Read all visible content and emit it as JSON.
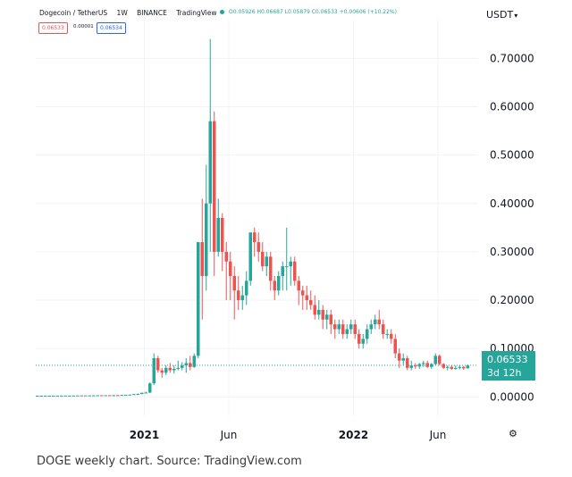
{
  "header": {
    "symbol": "Dogecoin / TetherUS",
    "interval": "1W",
    "exchange": "BINANCE",
    "source": "TradingView",
    "ohlc": "O0.05926 H0.06687 L0.05879 C0.06533 +0.00606 (+10.22%)"
  },
  "controls": {
    "sell": "0.06533",
    "spread": "0.00001",
    "buy": "0.06534"
  },
  "currency": "USDT",
  "price_badge": {
    "price": "0.06533",
    "countdown": "3d 12h"
  },
  "caption": "DOGE weekly chart. Source: TradingView.com",
  "colors": {
    "up": "#26a69a",
    "down": "#ef5350",
    "grid": "#f0f3fa",
    "badge": "#26a69a"
  },
  "icons": {
    "settings": "gear-icon",
    "currency_menu": "caret-down-icon"
  },
  "chart_data": {
    "type": "candlestick",
    "ylim": [
      -0.04,
      0.78
    ],
    "y_ticks": [
      "0.70000",
      "0.60000",
      "0.50000",
      "0.40000",
      "0.30000",
      "0.20000",
      "0.10000",
      "0.00000"
    ],
    "x_ticks": [
      {
        "label": "2021",
        "bold": true,
        "week": 27
      },
      {
        "label": "Jun",
        "bold": false,
        "week": 48
      },
      {
        "label": "2022",
        "bold": true,
        "week": 79
      },
      {
        "label": "Jun",
        "bold": false,
        "week": 100
      }
    ],
    "current_price": 0.06533,
    "candles_ohlc": [
      [
        0.0025,
        0.0026,
        0.0024,
        0.0025
      ],
      [
        0.0025,
        0.0026,
        0.0024,
        0.0025
      ],
      [
        0.0025,
        0.0026,
        0.0024,
        0.0026
      ],
      [
        0.0026,
        0.0027,
        0.0025,
        0.0026
      ],
      [
        0.0026,
        0.0027,
        0.0025,
        0.0026
      ],
      [
        0.0026,
        0.0027,
        0.0025,
        0.0027
      ],
      [
        0.0027,
        0.0028,
        0.0026,
        0.0027
      ],
      [
        0.0027,
        0.0029,
        0.0026,
        0.0028
      ],
      [
        0.0028,
        0.003,
        0.0027,
        0.0028
      ],
      [
        0.0028,
        0.003,
        0.0027,
        0.0029
      ],
      [
        0.0029,
        0.0031,
        0.0028,
        0.003
      ],
      [
        0.003,
        0.0032,
        0.0029,
        0.0031
      ],
      [
        0.0031,
        0.0033,
        0.0029,
        0.003
      ],
      [
        0.003,
        0.0032,
        0.0029,
        0.0031
      ],
      [
        0.0031,
        0.0034,
        0.003,
        0.0033
      ],
      [
        0.0033,
        0.0035,
        0.0031,
        0.0034
      ],
      [
        0.0034,
        0.0036,
        0.0032,
        0.0033
      ],
      [
        0.0033,
        0.0036,
        0.0032,
        0.0035
      ],
      [
        0.0035,
        0.0037,
        0.0033,
        0.0034
      ],
      [
        0.0034,
        0.0038,
        0.0033,
        0.0036
      ],
      [
        0.0036,
        0.004,
        0.0034,
        0.0035
      ],
      [
        0.0035,
        0.0041,
        0.0034,
        0.004
      ],
      [
        0.004,
        0.0045,
        0.0036,
        0.0042
      ],
      [
        0.0042,
        0.005,
        0.0039,
        0.0047
      ],
      [
        0.0047,
        0.006,
        0.0045,
        0.0058
      ],
      [
        0.0058,
        0.007,
        0.005,
        0.006
      ],
      [
        0.006,
        0.009,
        0.0055,
        0.0085
      ],
      [
        0.0085,
        0.011,
        0.0075,
        0.009
      ],
      [
        0.009,
        0.03,
        0.008,
        0.028
      ],
      [
        0.028,
        0.09,
        0.025,
        0.08
      ],
      [
        0.08,
        0.085,
        0.05,
        0.055
      ],
      [
        0.055,
        0.06,
        0.04,
        0.05
      ],
      [
        0.05,
        0.065,
        0.045,
        0.06
      ],
      [
        0.06,
        0.07,
        0.05,
        0.055
      ],
      [
        0.055,
        0.065,
        0.048,
        0.058
      ],
      [
        0.058,
        0.075,
        0.055,
        0.06
      ],
      [
        0.06,
        0.072,
        0.055,
        0.065
      ],
      [
        0.065,
        0.08,
        0.05,
        0.07
      ],
      [
        0.07,
        0.085,
        0.055,
        0.062
      ],
      [
        0.062,
        0.09,
        0.06,
        0.085
      ],
      [
        0.085,
        0.32,
        0.08,
        0.32
      ],
      [
        0.32,
        0.41,
        0.16,
        0.25
      ],
      [
        0.25,
        0.48,
        0.22,
        0.4
      ],
      [
        0.4,
        0.74,
        0.3,
        0.57
      ],
      [
        0.57,
        0.59,
        0.25,
        0.3
      ],
      [
        0.3,
        0.41,
        0.29,
        0.37
      ],
      [
        0.37,
        0.38,
        0.26,
        0.3
      ],
      [
        0.3,
        0.32,
        0.2,
        0.28
      ],
      [
        0.28,
        0.3,
        0.2,
        0.25
      ],
      [
        0.25,
        0.27,
        0.16,
        0.22
      ],
      [
        0.22,
        0.25,
        0.18,
        0.2
      ],
      [
        0.2,
        0.23,
        0.18,
        0.21
      ],
      [
        0.21,
        0.26,
        0.19,
        0.24
      ],
      [
        0.24,
        0.34,
        0.23,
        0.34
      ],
      [
        0.34,
        0.35,
        0.29,
        0.32
      ],
      [
        0.32,
        0.34,
        0.28,
        0.3
      ],
      [
        0.3,
        0.32,
        0.26,
        0.27
      ],
      [
        0.27,
        0.3,
        0.25,
        0.29
      ],
      [
        0.29,
        0.3,
        0.22,
        0.24
      ],
      [
        0.24,
        0.25,
        0.2,
        0.22
      ],
      [
        0.22,
        0.26,
        0.21,
        0.25
      ],
      [
        0.25,
        0.28,
        0.22,
        0.27
      ],
      [
        0.27,
        0.35,
        0.22,
        0.27
      ],
      [
        0.27,
        0.29,
        0.23,
        0.28
      ],
      [
        0.28,
        0.29,
        0.23,
        0.24
      ],
      [
        0.24,
        0.25,
        0.19,
        0.22
      ],
      [
        0.22,
        0.23,
        0.18,
        0.21
      ],
      [
        0.21,
        0.23,
        0.18,
        0.2
      ],
      [
        0.2,
        0.22,
        0.18,
        0.19
      ],
      [
        0.19,
        0.21,
        0.16,
        0.17
      ],
      [
        0.17,
        0.2,
        0.16,
        0.18
      ],
      [
        0.18,
        0.19,
        0.14,
        0.16
      ],
      [
        0.16,
        0.18,
        0.14,
        0.17
      ],
      [
        0.17,
        0.18,
        0.13,
        0.15
      ],
      [
        0.15,
        0.16,
        0.12,
        0.14
      ],
      [
        0.14,
        0.16,
        0.13,
        0.15
      ],
      [
        0.15,
        0.16,
        0.12,
        0.13
      ],
      [
        0.13,
        0.15,
        0.12,
        0.14
      ],
      [
        0.14,
        0.16,
        0.13,
        0.15
      ],
      [
        0.15,
        0.16,
        0.12,
        0.13
      ],
      [
        0.13,
        0.14,
        0.1,
        0.11
      ],
      [
        0.11,
        0.13,
        0.1,
        0.12
      ],
      [
        0.12,
        0.15,
        0.11,
        0.14
      ],
      [
        0.14,
        0.16,
        0.13,
        0.15
      ],
      [
        0.15,
        0.17,
        0.14,
        0.16
      ],
      [
        0.16,
        0.18,
        0.14,
        0.15
      ],
      [
        0.15,
        0.16,
        0.12,
        0.13
      ],
      [
        0.13,
        0.14,
        0.12,
        0.13
      ],
      [
        0.13,
        0.14,
        0.11,
        0.12
      ],
      [
        0.12,
        0.13,
        0.08,
        0.09
      ],
      [
        0.09,
        0.1,
        0.06,
        0.075
      ],
      [
        0.075,
        0.09,
        0.065,
        0.08
      ],
      [
        0.08,
        0.085,
        0.055,
        0.06
      ],
      [
        0.06,
        0.075,
        0.055,
        0.065
      ],
      [
        0.065,
        0.07,
        0.058,
        0.063
      ],
      [
        0.063,
        0.07,
        0.058,
        0.068
      ],
      [
        0.068,
        0.075,
        0.062,
        0.07
      ],
      [
        0.07,
        0.075,
        0.06,
        0.062
      ],
      [
        0.062,
        0.07,
        0.058,
        0.068
      ],
      [
        0.068,
        0.09,
        0.065,
        0.085
      ],
      [
        0.085,
        0.088,
        0.065,
        0.068
      ],
      [
        0.068,
        0.07,
        0.058,
        0.06
      ],
      [
        0.06,
        0.065,
        0.055,
        0.062
      ],
      [
        0.062,
        0.065,
        0.056,
        0.058
      ],
      [
        0.058,
        0.065,
        0.056,
        0.06
      ],
      [
        0.06,
        0.065,
        0.057,
        0.062
      ],
      [
        0.062,
        0.064,
        0.056,
        0.059
      ],
      [
        0.059,
        0.067,
        0.059,
        0.065
      ]
    ]
  }
}
